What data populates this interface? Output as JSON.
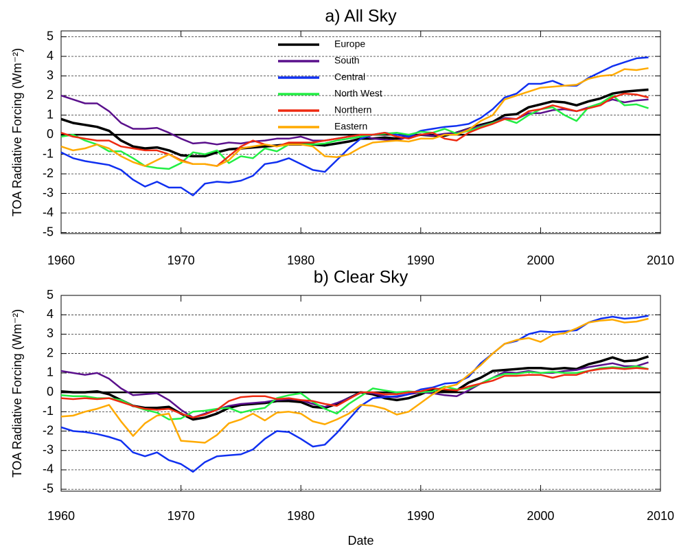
{
  "chart_data": [
    {
      "type": "line",
      "title": "a) All Sky",
      "y_label": "TOA Radiative Forcing (Wm⁻²)",
      "x": [
        1960,
        1961,
        1962,
        1963,
        1964,
        1965,
        1966,
        1967,
        1968,
        1969,
        1970,
        1971,
        1972,
        1973,
        1974,
        1975,
        1976,
        1977,
        1978,
        1979,
        1980,
        1981,
        1982,
        1983,
        1984,
        1985,
        1986,
        1987,
        1988,
        1989,
        1990,
        1991,
        1992,
        1993,
        1994,
        1995,
        1996,
        1997,
        1998,
        1999,
        2000,
        2001,
        2002,
        2003,
        2004,
        2005,
        2006,
        2007,
        2008,
        2009
      ],
      "xlim": [
        1960,
        2010
      ],
      "xticks": [
        1960,
        1970,
        1980,
        1990,
        2000,
        2010
      ],
      "ylim": [
        -5.05,
        5.3
      ],
      "yticks": [
        -5,
        -4,
        -3,
        -2,
        -1,
        0,
        1,
        2,
        3,
        4,
        5
      ],
      "grid": true,
      "legend": "upper center",
      "series": [
        {
          "name": "Europe",
          "color": "#000000",
          "values": [
            0.8,
            0.6,
            0.5,
            0.4,
            0.2,
            -0.3,
            -0.6,
            -0.7,
            -0.65,
            -0.8,
            -1.05,
            -1.1,
            -1.1,
            -0.9,
            -0.75,
            -0.7,
            -0.65,
            -0.6,
            -0.55,
            -0.5,
            -0.5,
            -0.5,
            -0.55,
            -0.45,
            -0.35,
            -0.2,
            -0.2,
            -0.15,
            -0.2,
            -0.1,
            0,
            -0.05,
            -0.05,
            0.1,
            0.3,
            0.5,
            0.65,
            1.0,
            1.05,
            1.4,
            1.55,
            1.7,
            1.65,
            1.5,
            1.7,
            1.85,
            2.1,
            2.2,
            2.25,
            2.3
          ]
        },
        {
          "name": "South",
          "color": "#5a108c",
          "values": [
            2.0,
            1.8,
            1.6,
            1.6,
            1.2,
            0.6,
            0.3,
            0.3,
            0.35,
            0.1,
            -0.2,
            -0.45,
            -0.4,
            -0.5,
            -0.4,
            -0.45,
            -0.35,
            -0.3,
            -0.2,
            -0.2,
            -0.1,
            -0.3,
            -0.3,
            -0.2,
            -0.1,
            0,
            -0.2,
            -0.25,
            -0.3,
            -0.1,
            0,
            -0.05,
            0.05,
            0.1,
            0.3,
            0.45,
            0.6,
            0.85,
            0.8,
            1.1,
            1.1,
            1.25,
            1.3,
            1.2,
            1.4,
            1.6,
            1.8,
            1.65,
            1.75,
            1.8
          ]
        },
        {
          "name": "Central",
          "color": "#1030f0",
          "values": [
            -0.9,
            -1.2,
            -1.35,
            -1.45,
            -1.55,
            -1.8,
            -2.3,
            -2.65,
            -2.4,
            -2.7,
            -2.7,
            -3.1,
            -2.5,
            -2.4,
            -2.45,
            -2.35,
            -2.1,
            -1.5,
            -1.4,
            -1.2,
            -1.5,
            -1.8,
            -1.9,
            -1.3,
            -0.7,
            -0.2,
            0,
            0.1,
            0,
            -0.1,
            0.2,
            0.3,
            0.4,
            0.45,
            0.55,
            0.85,
            1.3,
            1.9,
            2.1,
            2.6,
            2.6,
            2.75,
            2.5,
            2.5,
            2.9,
            3.2,
            3.5,
            3.7,
            3.9,
            3.95
          ]
        },
        {
          "name": "North West",
          "color": "#22ee44",
          "values": [
            -0.1,
            0,
            -0.3,
            -0.5,
            -0.85,
            -0.85,
            -1.2,
            -1.6,
            -1.7,
            -1.75,
            -1.45,
            -0.9,
            -1.0,
            -0.8,
            -1.45,
            -1.1,
            -1.2,
            -0.7,
            -0.85,
            -0.5,
            -0.5,
            -0.5,
            -0.45,
            -0.3,
            -0.2,
            -0.1,
            0,
            0.05,
            0.1,
            0,
            0.15,
            0.1,
            0.3,
            0.05,
            0.2,
            0.4,
            0.6,
            0.8,
            0.6,
            1.0,
            1.3,
            1.4,
            1.0,
            0.7,
            1.4,
            1.6,
            2.0,
            1.5,
            1.55,
            1.35
          ]
        },
        {
          "name": "Northern",
          "color": "#ee2a10",
          "values": [
            0.1,
            -0.1,
            -0.2,
            -0.3,
            -0.3,
            -0.6,
            -0.7,
            -0.8,
            -0.8,
            -1.0,
            -1.3,
            -1.5,
            -1.5,
            -1.6,
            -1.1,
            -0.6,
            -0.3,
            -0.5,
            -0.6,
            -0.4,
            -0.4,
            -0.4,
            -0.3,
            -0.2,
            -0.1,
            0,
            0,
            0.1,
            -0.1,
            -0.2,
            0,
            0.1,
            -0.2,
            -0.3,
            0.1,
            0.35,
            0.55,
            0.8,
            0.8,
            1.2,
            1.3,
            1.5,
            1.35,
            1.2,
            1.35,
            1.5,
            1.9,
            2.1,
            2.05,
            1.9
          ]
        },
        {
          "name": "Eastern",
          "color": "#ffaa00",
          "values": [
            -0.6,
            -0.8,
            -0.7,
            -0.5,
            -0.7,
            -1.1,
            -1.4,
            -1.6,
            -1.3,
            -1.0,
            -1.35,
            -1.5,
            -1.5,
            -1.6,
            -1.3,
            -0.7,
            -0.6,
            -0.5,
            -0.6,
            -0.5,
            -0.5,
            -0.6,
            -1.1,
            -1.15,
            -1.0,
            -0.65,
            -0.4,
            -0.35,
            -0.3,
            -0.35,
            -0.2,
            -0.2,
            0,
            0,
            0.25,
            0.7,
            1.0,
            1.8,
            2.0,
            2.2,
            2.4,
            2.45,
            2.5,
            2.55,
            2.85,
            3.0,
            3.05,
            3.35,
            3.3,
            3.4
          ]
        }
      ]
    },
    {
      "type": "line",
      "title": "b) Clear Sky",
      "y_label": "TOA Radiative Forcing (Wm⁻²)",
      "x_label": "Date",
      "x": [
        1960,
        1961,
        1962,
        1963,
        1964,
        1965,
        1966,
        1967,
        1968,
        1969,
        1970,
        1971,
        1972,
        1973,
        1974,
        1975,
        1976,
        1977,
        1978,
        1979,
        1980,
        1981,
        1982,
        1983,
        1984,
        1985,
        1986,
        1987,
        1988,
        1989,
        1990,
        1991,
        1992,
        1993,
        1994,
        1995,
        1996,
        1997,
        1998,
        1999,
        2000,
        2001,
        2002,
        2003,
        2004,
        2005,
        2006,
        2007,
        2008,
        2009
      ],
      "xlim": [
        1960,
        2010
      ],
      "xticks": [
        1960,
        1970,
        1980,
        1990,
        2000,
        2010
      ],
      "ylim": [
        -5.1,
        5.0
      ],
      "yticks": [
        -5,
        -4,
        -3,
        -2,
        -1,
        0,
        1,
        2,
        3,
        4,
        5
      ],
      "grid": true,
      "series": [
        {
          "name": "Europe",
          "color": "#000000",
          "values": [
            0.05,
            0,
            0,
            0.05,
            -0.1,
            -0.4,
            -0.7,
            -0.8,
            -0.8,
            -0.75,
            -1.1,
            -1.4,
            -1.3,
            -1.1,
            -0.8,
            -0.65,
            -0.6,
            -0.55,
            -0.45,
            -0.45,
            -0.5,
            -0.75,
            -0.8,
            -0.6,
            -0.3,
            0,
            -0.1,
            -0.3,
            -0.4,
            -0.3,
            -0.1,
            0.15,
            0.05,
            0.1,
            0.5,
            0.75,
            1.1,
            1.15,
            1.2,
            1.25,
            1.25,
            1.2,
            1.25,
            1.2,
            1.45,
            1.6,
            1.8,
            1.6,
            1.65,
            1.85
          ]
        },
        {
          "name": "South",
          "color": "#5a108c",
          "values": [
            1.1,
            1.0,
            0.9,
            1.0,
            0.7,
            0.2,
            -0.15,
            -0.1,
            -0.05,
            -0.4,
            -0.9,
            -1.3,
            -1.1,
            -0.9,
            -0.7,
            -0.6,
            -0.55,
            -0.5,
            -0.4,
            -0.35,
            -0.4,
            -0.6,
            -0.75,
            -0.55,
            -0.3,
            0,
            -0.05,
            -0.2,
            -0.25,
            -0.1,
            0,
            -0.05,
            -0.15,
            -0.2,
            0.1,
            0.45,
            0.75,
            1.05,
            1.0,
            1.1,
            1.0,
            1.0,
            1.1,
            1.15,
            1.3,
            1.4,
            1.5,
            1.35,
            1.35,
            1.55
          ]
        },
        {
          "name": "Central",
          "color": "#1030f0",
          "values": [
            -1.8,
            -2.0,
            -2.05,
            -2.15,
            -2.3,
            -2.5,
            -3.1,
            -3.3,
            -3.1,
            -3.5,
            -3.7,
            -4.1,
            -3.6,
            -3.3,
            -3.25,
            -3.2,
            -2.95,
            -2.4,
            -2.0,
            -2.05,
            -2.4,
            -2.8,
            -2.7,
            -2.1,
            -1.4,
            -0.7,
            -0.3,
            -0.25,
            -0.2,
            -0.1,
            0.15,
            0.25,
            0.45,
            0.5,
            0.8,
            1.5,
            2.0,
            2.5,
            2.65,
            3.0,
            3.15,
            3.1,
            3.15,
            3.2,
            3.6,
            3.8,
            3.9,
            3.8,
            3.85,
            3.95
          ]
        },
        {
          "name": "North West",
          "color": "#22ee44",
          "values": [
            -0.15,
            -0.2,
            -0.2,
            -0.3,
            -0.3,
            -0.4,
            -0.7,
            -0.9,
            -1.05,
            -1.4,
            -1.35,
            -1.0,
            -0.95,
            -0.85,
            -0.8,
            -1.05,
            -0.9,
            -0.8,
            -0.3,
            -0.15,
            -0.05,
            -0.5,
            -0.85,
            -1.1,
            -0.6,
            -0.2,
            0.2,
            0.1,
            0,
            0.05,
            0,
            0.05,
            0.3,
            0.15,
            0.2,
            0.45,
            0.75,
            0.95,
            0.95,
            1.05,
            1.0,
            1.05,
            1.0,
            1.0,
            1.1,
            1.25,
            1.3,
            1.25,
            1.35,
            1.2
          ]
        },
        {
          "name": "Northern",
          "color": "#ee2a10",
          "values": [
            -0.3,
            -0.35,
            -0.3,
            -0.35,
            -0.3,
            -0.5,
            -0.7,
            -0.85,
            -0.9,
            -0.85,
            -1.1,
            -1.3,
            -1.15,
            -0.9,
            -0.45,
            -0.25,
            -0.2,
            -0.2,
            -0.35,
            -0.3,
            -0.4,
            -0.45,
            -0.6,
            -0.7,
            -0.35,
            0,
            0,
            -0.1,
            -0.1,
            0,
            0.05,
            0.2,
            0.15,
            0.1,
            0.3,
            0.45,
            0.6,
            0.85,
            0.85,
            0.9,
            0.9,
            0.75,
            0.9,
            0.9,
            1.1,
            1.2,
            1.25,
            1.2,
            1.25,
            1.2
          ]
        },
        {
          "name": "Eastern",
          "color": "#ffaa00",
          "values": [
            -1.25,
            -1.2,
            -1.0,
            -0.85,
            -0.65,
            -1.5,
            -2.25,
            -1.6,
            -1.2,
            -1.1,
            -2.5,
            -2.55,
            -2.6,
            -2.2,
            -1.6,
            -1.4,
            -1.1,
            -1.45,
            -1.05,
            -1.0,
            -1.1,
            -1.5,
            -1.65,
            -1.4,
            -1.1,
            -0.65,
            -0.7,
            -0.85,
            -1.15,
            -1.0,
            -0.55,
            -0.1,
            0.25,
            0.4,
            0.9,
            1.4,
            2.0,
            2.5,
            2.7,
            2.8,
            2.6,
            2.95,
            3.05,
            3.3,
            3.6,
            3.7,
            3.75,
            3.6,
            3.65,
            3.8
          ]
        }
      ]
    }
  ]
}
